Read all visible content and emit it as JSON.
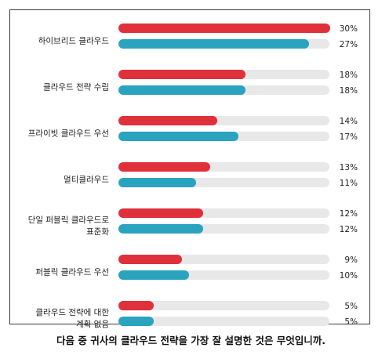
{
  "caption": "다음 중 귀사의 클라우드 전략을 가장 잘 설명한 것은 무엇입니까.",
  "colors": {
    "series_a": "#e0303a",
    "series_b": "#2aa3bf",
    "track": "#e8e8e8"
  },
  "chart_data": {
    "type": "bar",
    "orientation": "horizontal",
    "xlim": [
      0,
      30
    ],
    "grid": false,
    "legend": "none",
    "categories": [
      [
        "하이브리드 클라우드"
      ],
      [
        "클라우드 전략 수립"
      ],
      [
        "프라이빗 클라우드 우선"
      ],
      [
        "멀티클라우드"
      ],
      [
        "단일 퍼블릭 클라우드로",
        "표준화"
      ],
      [
        "퍼블릭 클라우드 우선"
      ],
      [
        "클라우드 전략에 대한",
        "계획 없음"
      ]
    ],
    "series": [
      {
        "values": [
          30,
          18,
          14,
          13,
          12,
          9,
          5
        ],
        "labels": [
          "30%",
          "18%",
          "14%",
          "13%",
          "12%",
          "9%",
          "5%"
        ]
      },
      {
        "values": [
          27,
          18,
          17,
          11,
          12,
          10,
          5
        ],
        "labels": [
          "27%",
          "18%",
          "17%",
          "11%",
          "12%",
          "10%",
          "5%"
        ]
      }
    ]
  }
}
